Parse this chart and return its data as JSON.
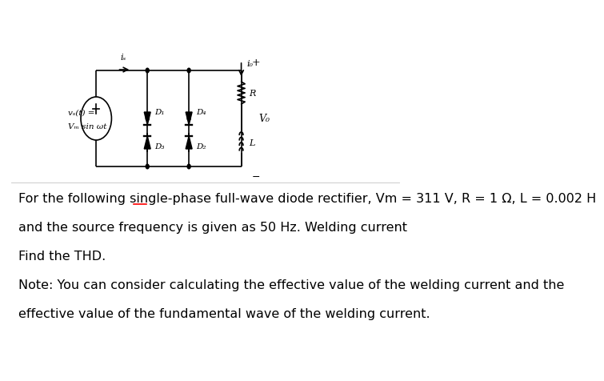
{
  "background_color": "#ffffff",
  "paragraph_lines": [
    "For the following single-phase full-wave diode rectifier, Vm = 311 V, R = 1 Ω, L = 0.002 H",
    "and the source frequency is given as 50 Hz. Welding current",
    "Find the THD.",
    "Note: You can consider calculating the effective value of the welding current and the",
    "effective value of the fundamental wave of the welding current."
  ],
  "text_fontsize": 11.5,
  "circuit": {
    "source_label_line1": "vₛ(t) =",
    "source_label_line2": "Vₘ sin ωt",
    "is_label": "iₛ",
    "io_label": "i₀",
    "D1_label": "D₁",
    "D2_label": "D₂",
    "D3_label": "D₃",
    "D4_label": "D₄",
    "R_label": "R",
    "L_label": "L",
    "Vo_label": "V₀",
    "plus_label": "+",
    "minus_label": "−"
  }
}
